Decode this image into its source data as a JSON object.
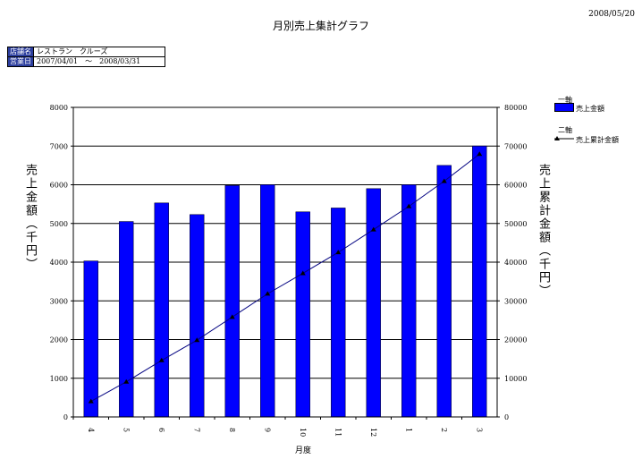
{
  "header": {
    "date": "2008/05/20",
    "title": "月別売上集計グラフ"
  },
  "info": {
    "store_label": "店舗名",
    "store_value": "レストラン　クルーズ",
    "period_label": "営業日",
    "period_value": "2007/04/01　～　2008/03/31"
  },
  "legend": {
    "axis1_title": "一軸",
    "axis1_series": "売上金額",
    "axis2_title": "二軸",
    "axis2_series": "売上累計金額"
  },
  "colors": {
    "bar": "#0000ff",
    "line": "#000080",
    "grid": "#000000"
  },
  "chart_data": {
    "type": "bar",
    "title": "月別売上集計グラフ",
    "xlabel": "月度",
    "ylabel": "売上金額（千円）",
    "y2label": "売上累計金額（千円）",
    "categories": [
      "4",
      "5",
      "6",
      "7",
      "8",
      "9",
      "10",
      "11",
      "12",
      "1",
      "2",
      "3"
    ],
    "ylim": [
      0,
      8000
    ],
    "y2lim": [
      0,
      80000
    ],
    "yticks": [
      0,
      1000,
      2000,
      3000,
      4000,
      5000,
      6000,
      7000,
      8000
    ],
    "y2ticks": [
      0,
      10000,
      20000,
      30000,
      40000,
      50000,
      60000,
      70000,
      80000
    ],
    "grid": true,
    "legend_position": "right",
    "series": [
      {
        "name": "売上金額",
        "axis": "y1",
        "kind": "bar",
        "values": [
          4030,
          5050,
          5530,
          5230,
          5980,
          6000,
          5300,
          5400,
          5900,
          6000,
          6500,
          7000
        ]
      },
      {
        "name": "売上累計金額",
        "axis": "y2",
        "kind": "line",
        "values": [
          4030,
          9080,
          14610,
          19840,
          25820,
          31820,
          37120,
          42520,
          48420,
          54420,
          60920,
          67920
        ]
      }
    ]
  }
}
